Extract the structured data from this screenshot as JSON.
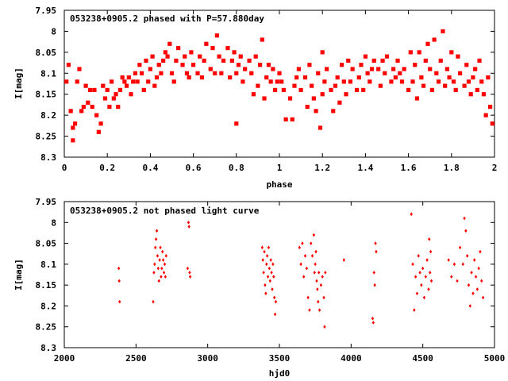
{
  "chart_data": [
    {
      "type": "scatter",
      "title": "053238+0905.2 phased with P=57.880day",
      "xlabel": "phase",
      "ylabel": "I[mag]",
      "xlim": [
        0,
        2
      ],
      "ylim": [
        8.3,
        7.95
      ],
      "y_inverted": true,
      "x_ticks": [
        "0",
        "0.2",
        "0.4",
        "0.6",
        "0.8",
        "1",
        "1.2",
        "1.4",
        "1.6",
        "1.8",
        "2"
      ],
      "y_ticks": [
        "7.95",
        "8",
        "8.05",
        "8.1",
        "8.15",
        "8.2",
        "8.25",
        "8.3"
      ],
      "marker_color": "#ff0000",
      "grid": false,
      "points": [
        [
          0.01,
          8.12
        ],
        [
          0.02,
          8.08
        ],
        [
          0.03,
          8.19
        ],
        [
          0.04,
          8.23
        ],
        [
          0.04,
          8.26
        ],
        [
          0.05,
          8.22
        ],
        [
          0.06,
          8.12
        ],
        [
          0.07,
          8.09
        ],
        [
          0.08,
          8.19
        ],
        [
          0.09,
          8.18
        ],
        [
          0.1,
          8.13
        ],
        [
          0.11,
          8.17
        ],
        [
          0.12,
          8.14
        ],
        [
          0.13,
          8.18
        ],
        [
          0.14,
          8.14
        ],
        [
          0.15,
          8.2
        ],
        [
          0.16,
          8.24
        ],
        [
          0.17,
          8.22
        ],
        [
          0.18,
          8.13
        ],
        [
          0.19,
          8.16
        ],
        [
          0.2,
          8.14
        ],
        [
          0.21,
          8.18
        ],
        [
          0.22,
          8.12
        ],
        [
          0.23,
          8.16
        ],
        [
          0.24,
          8.15
        ],
        [
          0.25,
          8.18
        ],
        [
          0.26,
          8.14
        ],
        [
          0.27,
          8.11
        ],
        [
          0.28,
          8.12
        ],
        [
          0.29,
          8.13
        ],
        [
          0.3,
          8.11
        ],
        [
          0.31,
          8.15
        ],
        [
          0.32,
          8.12
        ],
        [
          0.33,
          8.1
        ],
        [
          0.34,
          8.12
        ],
        [
          0.35,
          8.08
        ],
        [
          0.36,
          8.1
        ],
        [
          0.37,
          8.14
        ],
        [
          0.38,
          8.07
        ],
        [
          0.39,
          8.12
        ],
        [
          0.4,
          8.09
        ],
        [
          0.41,
          8.06
        ],
        [
          0.42,
          8.13
        ],
        [
          0.43,
          8.11
        ],
        [
          0.44,
          8.08
        ],
        [
          0.45,
          8.1
        ],
        [
          0.46,
          8.07
        ],
        [
          0.47,
          8.05
        ],
        [
          0.48,
          8.06
        ],
        [
          0.49,
          8.03
        ],
        [
          0.5,
          8.1
        ],
        [
          0.51,
          8.12
        ],
        [
          0.52,
          8.07
        ],
        [
          0.53,
          8.04
        ],
        [
          0.55,
          8.08
        ],
        [
          0.56,
          8.06
        ],
        [
          0.57,
          8.1
        ],
        [
          0.58,
          8.11
        ],
        [
          0.59,
          8.05
        ],
        [
          0.6,
          8.08
        ],
        [
          0.62,
          8.1
        ],
        [
          0.63,
          8.06
        ],
        [
          0.64,
          8.11
        ],
        [
          0.65,
          8.07
        ],
        [
          0.66,
          8.03
        ],
        [
          0.68,
          8.09
        ],
        [
          0.69,
          8.04
        ],
        [
          0.7,
          8.1
        ],
        [
          0.71,
          8.01
        ],
        [
          0.72,
          8.06
        ],
        [
          0.73,
          8.1
        ],
        [
          0.74,
          8.07
        ],
        [
          0.76,
          8.04
        ],
        [
          0.77,
          8.11
        ],
        [
          0.78,
          8.07
        ],
        [
          0.79,
          8.05
        ],
        [
          0.8,
          8.1
        ],
        [
          0.8,
          8.22
        ],
        [
          0.81,
          8.08
        ],
        [
          0.82,
          8.06
        ],
        [
          0.83,
          8.12
        ],
        [
          0.84,
          8.09
        ],
        [
          0.86,
          8.07
        ],
        [
          0.87,
          8.1
        ],
        [
          0.88,
          8.15
        ],
        [
          0.89,
          8.06
        ],
        [
          0.9,
          8.13
        ],
        [
          0.91,
          8.08
        ],
        [
          0.92,
          8.02
        ],
        [
          0.93,
          8.16
        ],
        [
          0.94,
          8.11
        ],
        [
          0.95,
          8.08
        ],
        [
          0.96,
          8.12
        ],
        [
          0.97,
          8.09
        ],
        [
          0.98,
          8.14
        ],
        [
          0.99,
          8.12
        ],
        [
          1.0,
          8.1
        ],
        [
          1.01,
          8.12
        ],
        [
          1.02,
          8.14
        ],
        [
          1.03,
          8.21
        ],
        [
          1.05,
          8.16
        ],
        [
          1.06,
          8.21
        ],
        [
          1.07,
          8.13
        ],
        [
          1.08,
          8.11
        ],
        [
          1.09,
          8.09
        ],
        [
          1.1,
          8.14
        ],
        [
          1.12,
          8.11
        ],
        [
          1.13,
          8.18
        ],
        [
          1.14,
          8.08
        ],
        [
          1.15,
          8.13
        ],
        [
          1.16,
          8.16
        ],
        [
          1.17,
          8.19
        ],
        [
          1.18,
          8.1
        ],
        [
          1.19,
          8.23
        ],
        [
          1.2,
          8.15
        ],
        [
          1.2,
          8.05
        ],
        [
          1.21,
          8.12
        ],
        [
          1.22,
          8.09
        ],
        [
          1.24,
          8.14
        ],
        [
          1.25,
          8.19
        ],
        [
          1.26,
          8.13
        ],
        [
          1.27,
          8.11
        ],
        [
          1.28,
          8.17
        ],
        [
          1.29,
          8.08
        ],
        [
          1.3,
          8.12
        ],
        [
          1.31,
          8.15
        ],
        [
          1.32,
          8.07
        ],
        [
          1.33,
          8.12
        ],
        [
          1.34,
          8.09
        ],
        [
          1.36,
          8.14
        ],
        [
          1.37,
          8.11
        ],
        [
          1.38,
          8.08
        ],
        [
          1.39,
          8.14
        ],
        [
          1.4,
          8.06
        ],
        [
          1.41,
          8.1
        ],
        [
          1.42,
          8.12
        ],
        [
          1.43,
          8.09
        ],
        [
          1.44,
          8.07
        ],
        [
          1.46,
          8.09
        ],
        [
          1.47,
          8.13
        ],
        [
          1.48,
          8.07
        ],
        [
          1.49,
          8.1
        ],
        [
          1.5,
          8.06
        ],
        [
          1.52,
          8.12
        ],
        [
          1.53,
          8.09
        ],
        [
          1.54,
          8.11
        ],
        [
          1.55,
          8.07
        ],
        [
          1.56,
          8.1
        ],
        [
          1.57,
          8.12
        ],
        [
          1.58,
          8.09
        ],
        [
          1.6,
          8.14
        ],
        [
          1.61,
          8.05
        ],
        [
          1.62,
          8.12
        ],
        [
          1.63,
          8.08
        ],
        [
          1.64,
          8.16
        ],
        [
          1.65,
          8.05
        ],
        [
          1.66,
          8.11
        ],
        [
          1.67,
          8.13
        ],
        [
          1.68,
          8.07
        ],
        [
          1.69,
          8.03
        ],
        [
          1.7,
          8.09
        ],
        [
          1.71,
          8.14
        ],
        [
          1.72,
          8.02
        ],
        [
          1.73,
          8.1
        ],
        [
          1.74,
          8.12
        ],
        [
          1.75,
          8.07
        ],
        [
          1.76,
          8.0
        ],
        [
          1.77,
          8.13
        ],
        [
          1.78,
          8.09
        ],
        [
          1.79,
          8.11
        ],
        [
          1.8,
          8.05
        ],
        [
          1.81,
          8.12
        ],
        [
          1.82,
          8.14
        ],
        [
          1.83,
          8.06
        ],
        [
          1.84,
          8.1
        ],
        [
          1.86,
          8.13
        ],
        [
          1.87,
          8.08
        ],
        [
          1.88,
          8.12
        ],
        [
          1.89,
          8.15
        ],
        [
          1.9,
          8.11
        ],
        [
          1.91,
          8.09
        ],
        [
          1.92,
          8.14
        ],
        [
          1.93,
          8.07
        ],
        [
          1.94,
          8.12
        ],
        [
          1.95,
          8.15
        ],
        [
          1.96,
          8.2
        ],
        [
          1.97,
          8.11
        ],
        [
          1.98,
          8.18
        ],
        [
          1.99,
          8.22
        ]
      ]
    },
    {
      "type": "scatter",
      "title": "053238+0905.2 not phased light curve",
      "xlabel": "hjd0",
      "ylabel": "I[mag]",
      "xlim": [
        2000,
        5000
      ],
      "ylim": [
        8.3,
        7.95
      ],
      "y_inverted": true,
      "x_ticks": [
        "2000",
        "2500",
        "3000",
        "3500",
        "4000",
        "4500",
        "5000"
      ],
      "y_ticks": [
        "7.95",
        "8",
        "8.05",
        "8.1",
        "8.15",
        "8.2",
        "8.25",
        "8.3"
      ],
      "marker_color": "#ff0000",
      "grid": false,
      "points": [
        [
          2380,
          8.11
        ],
        [
          2383,
          8.14
        ],
        [
          2386,
          8.19
        ],
        [
          2620,
          8.19
        ],
        [
          2625,
          8.12
        ],
        [
          2630,
          8.1
        ],
        [
          2635,
          8.06
        ],
        [
          2640,
          8.04
        ],
        [
          2645,
          8.02
        ],
        [
          2650,
          8.08
        ],
        [
          2655,
          8.11
        ],
        [
          2660,
          8.14
        ],
        [
          2665,
          8.09
        ],
        [
          2670,
          8.06
        ],
        [
          2675,
          8.13
        ],
        [
          2680,
          8.11
        ],
        [
          2685,
          8.07
        ],
        [
          2690,
          8.09
        ],
        [
          2695,
          8.12
        ],
        [
          2700,
          8.1
        ],
        [
          2705,
          8.13
        ],
        [
          2710,
          8.08
        ],
        [
          2860,
          8.11
        ],
        [
          2866,
          8.0
        ],
        [
          2870,
          8.01
        ],
        [
          2874,
          8.12
        ],
        [
          2878,
          8.13
        ],
        [
          3380,
          8.06
        ],
        [
          3385,
          8.09
        ],
        [
          3390,
          8.12
        ],
        [
          3395,
          8.07
        ],
        [
          3400,
          8.15
        ],
        [
          3405,
          8.17
        ],
        [
          3410,
          8.1
        ],
        [
          3415,
          8.08
        ],
        [
          3420,
          8.13
        ],
        [
          3425,
          8.06
        ],
        [
          3430,
          8.11
        ],
        [
          3435,
          8.14
        ],
        [
          3440,
          8.09
        ],
        [
          3445,
          8.12
        ],
        [
          3450,
          8.16
        ],
        [
          3455,
          8.1
        ],
        [
          3460,
          8.13
        ],
        [
          3465,
          8.18
        ],
        [
          3470,
          8.22
        ],
        [
          3475,
          8.19
        ],
        [
          3640,
          8.06
        ],
        [
          3650,
          8.1
        ],
        [
          3660,
          8.05
        ],
        [
          3670,
          8.13
        ],
        [
          3680,
          8.08
        ],
        [
          3690,
          8.11
        ],
        [
          3700,
          8.18
        ],
        [
          3710,
          8.21
        ],
        [
          3720,
          8.05
        ],
        [
          3730,
          8.08
        ],
        [
          3740,
          8.03
        ],
        [
          3745,
          8.12
        ],
        [
          3750,
          8.1
        ],
        [
          3755,
          8.07
        ],
        [
          3760,
          8.14
        ],
        [
          3765,
          8.16
        ],
        [
          3770,
          8.19
        ],
        [
          3775,
          8.12
        ],
        [
          3780,
          8.21
        ],
        [
          3790,
          8.15
        ],
        [
          3800,
          8.13
        ],
        [
          3810,
          8.18
        ],
        [
          3815,
          8.25
        ],
        [
          3820,
          8.12
        ],
        [
          3950,
          8.09
        ],
        [
          4150,
          8.23
        ],
        [
          4155,
          8.24
        ],
        [
          4160,
          8.12
        ],
        [
          4165,
          8.15
        ],
        [
          4170,
          8.05
        ],
        [
          4175,
          8.07
        ],
        [
          4420,
          7.98
        ],
        [
          4430,
          8.1
        ],
        [
          4440,
          8.21
        ],
        [
          4450,
          8.13
        ],
        [
          4460,
          8.17
        ],
        [
          4470,
          8.08
        ],
        [
          4480,
          8.12
        ],
        [
          4490,
          8.15
        ],
        [
          4500,
          8.11
        ],
        [
          4510,
          8.18
        ],
        [
          4520,
          8.13
        ],
        [
          4530,
          8.09
        ],
        [
          4540,
          8.16
        ],
        [
          4545,
          8.04
        ],
        [
          4550,
          8.12
        ],
        [
          4555,
          8.07
        ],
        [
          4560,
          8.14
        ],
        [
          4680,
          8.09
        ],
        [
          4700,
          8.13
        ],
        [
          4720,
          8.1
        ],
        [
          4740,
          8.14
        ],
        [
          4760,
          8.06
        ],
        [
          4780,
          8.1
        ],
        [
          4790,
          7.99
        ],
        [
          4800,
          8.02
        ],
        [
          4810,
          8.08
        ],
        [
          4820,
          8.15
        ],
        [
          4830,
          8.2
        ],
        [
          4840,
          8.12
        ],
        [
          4850,
          8.17
        ],
        [
          4860,
          8.09
        ],
        [
          4870,
          8.13
        ],
        [
          4880,
          8.16
        ],
        [
          4890,
          8.11
        ],
        [
          4900,
          8.07
        ],
        [
          4910,
          8.14
        ],
        [
          4920,
          8.18
        ]
      ]
    }
  ]
}
